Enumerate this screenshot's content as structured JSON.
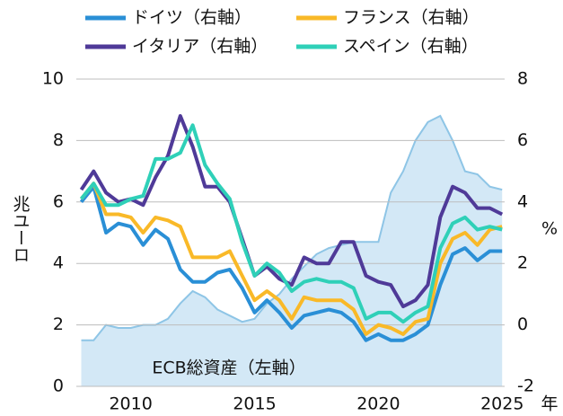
{
  "chart_data": {
    "type": "line",
    "x_unit_label": "年",
    "ylabel": "兆ユーロ",
    "y2label": "%",
    "x": [
      2008,
      2008.5,
      2009,
      2009.5,
      2010,
      2010.5,
      2011,
      2011.5,
      2012,
      2012.5,
      2013,
      2013.5,
      2014,
      2014.5,
      2015,
      2015.5,
      2016,
      2016.5,
      2017,
      2017.5,
      2018,
      2018.5,
      2019,
      2019.5,
      2020,
      2020.5,
      2021,
      2021.5,
      2022,
      2022.5,
      2023,
      2023.5,
      2024,
      2024.5,
      2025
    ],
    "xlim": [
      2007.8,
      2025.1
    ],
    "xticks": [
      2010,
      2015,
      2020,
      2025
    ],
    "ylim": [
      0,
      10
    ],
    "yticks": [
      0,
      2,
      4,
      6,
      8,
      10
    ],
    "y2lim": [
      -2,
      8
    ],
    "y2ticks": [
      -2,
      0,
      2,
      4,
      6,
      8
    ],
    "grid": true,
    "area": {
      "name": "ECB総資産（左軸）",
      "color": "#d3e8f6",
      "line_color": "#8ec5e6",
      "values": [
        1.5,
        1.5,
        2.0,
        1.9,
        1.9,
        2.0,
        2.0,
        2.2,
        2.7,
        3.1,
        2.9,
        2.5,
        2.3,
        2.1,
        2.2,
        2.7,
        3.0,
        3.5,
        3.9,
        4.3,
        4.5,
        4.6,
        4.7,
        4.7,
        4.7,
        6.3,
        7.0,
        8.0,
        8.6,
        8.8,
        8.0,
        7.0,
        6.9,
        6.5,
        6.4
      ]
    },
    "series": [
      {
        "name": "ドイツ（右軸）",
        "color": "#2a8fd6",
        "axis": "y2",
        "values": [
          4.0,
          4.5,
          3.0,
          3.3,
          3.2,
          2.6,
          3.1,
          2.8,
          1.8,
          1.4,
          1.4,
          1.7,
          1.8,
          1.2,
          0.4,
          0.8,
          0.4,
          -0.1,
          0.3,
          0.4,
          0.5,
          0.4,
          0.1,
          -0.5,
          -0.3,
          -0.5,
          -0.5,
          -0.3,
          0.0,
          1.3,
          2.3,
          2.5,
          2.1,
          2.4,
          2.4
        ]
      },
      {
        "name": "フランス（右軸）",
        "color": "#f9b928",
        "axis": "y2",
        "values": [
          4.1,
          4.6,
          3.6,
          3.6,
          3.5,
          3.0,
          3.5,
          3.4,
          3.2,
          2.2,
          2.2,
          2.2,
          2.4,
          1.6,
          0.8,
          1.1,
          0.8,
          0.2,
          0.9,
          0.8,
          0.8,
          0.8,
          0.5,
          -0.3,
          0.0,
          -0.1,
          -0.3,
          0.1,
          0.2,
          2.0,
          2.8,
          3.0,
          2.6,
          3.1,
          3.2
        ]
      },
      {
        "name": "イタリア（右軸）",
        "color": "#4f3a98",
        "axis": "y2",
        "values": [
          4.4,
          5.0,
          4.3,
          4.0,
          4.1,
          3.9,
          4.8,
          5.5,
          6.8,
          5.8,
          4.5,
          4.5,
          4.0,
          2.8,
          1.6,
          1.9,
          1.5,
          1.3,
          2.2,
          2.0,
          2.0,
          2.7,
          2.7,
          1.6,
          1.4,
          1.3,
          0.6,
          0.8,
          1.3,
          3.5,
          4.5,
          4.3,
          3.8,
          3.8,
          3.6
        ]
      },
      {
        "name": "スペイン（右軸）",
        "color": "#2fd0b8",
        "axis": "y2",
        "values": [
          4.1,
          4.6,
          3.9,
          3.9,
          4.1,
          4.2,
          5.4,
          5.4,
          5.6,
          6.5,
          5.2,
          4.6,
          4.1,
          2.7,
          1.6,
          2.0,
          1.7,
          1.1,
          1.4,
          1.5,
          1.4,
          1.4,
          1.2,
          0.2,
          0.4,
          0.4,
          0.1,
          0.4,
          0.6,
          2.5,
          3.3,
          3.5,
          3.1,
          3.2,
          3.1
        ]
      }
    ]
  }
}
